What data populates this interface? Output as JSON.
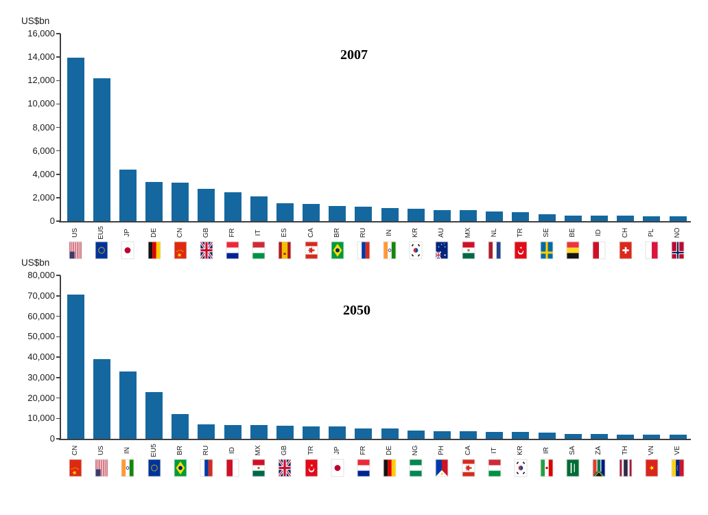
{
  "colors": {
    "bar": "#15689f",
    "axis": "#3f3f3f",
    "tick_text": "#1a1a1a",
    "title_text": "#000000"
  },
  "chart_data": [
    {
      "type": "bar",
      "title": "2007",
      "unit_label": "US$bn",
      "ylabel": "US$bn",
      "xlabel": "",
      "ylim": [
        0,
        16000
      ],
      "ytick_step": 2000,
      "ytick_labels": [
        "16,000",
        "14,000",
        "12,000",
        "10,000",
        "8,000",
        "6,000",
        "4,000",
        "2,000",
        "0"
      ],
      "grid": false,
      "legend": "none",
      "categories": [
        "US",
        "EU5",
        "JP",
        "DE",
        "CN",
        "GB",
        "FR",
        "IT",
        "ES",
        "CA",
        "BR",
        "RU",
        "IN",
        "KR",
        "AU",
        "MX",
        "NL",
        "TR",
        "SE",
        "BE",
        "ID",
        "CH",
        "PL",
        "NO"
      ],
      "values": [
        13950,
        12200,
        4400,
        3350,
        3300,
        2750,
        2450,
        2100,
        1500,
        1450,
        1300,
        1250,
        1100,
        1050,
        950,
        950,
        800,
        780,
        600,
        480,
        460,
        450,
        430,
        410
      ],
      "flag_icons": [
        "us",
        "eu",
        "jp",
        "de",
        "cn",
        "gb",
        "fr",
        "it",
        "es",
        "ca",
        "br",
        "ru",
        "in",
        "kr",
        "au",
        "mx",
        "nl",
        "tr",
        "se",
        "be",
        "id",
        "ch",
        "pl",
        "no"
      ]
    },
    {
      "type": "bar",
      "title": "2050",
      "unit_label": "US$bn",
      "ylabel": "US$bn",
      "xlabel": "",
      "ylim": [
        0,
        80000
      ],
      "ytick_step": 10000,
      "ytick_labels": [
        "80,000",
        "70,000",
        "60,000",
        "50,000",
        "40,000",
        "30,000",
        "20,000",
        "10,000",
        "0"
      ],
      "grid": false,
      "legend": "none",
      "categories": [
        "CN",
        "US",
        "IN",
        "EU5",
        "BR",
        "RU",
        "ID",
        "MX",
        "GB",
        "TR",
        "JP",
        "FR",
        "DE",
        "NG",
        "PH",
        "CA",
        "IT",
        "KR",
        "IR",
        "SA",
        "ZA",
        "TH",
        "VN",
        "VE"
      ],
      "values": [
        70500,
        39000,
        33000,
        23000,
        12000,
        7200,
        6800,
        6700,
        6300,
        6100,
        6000,
        5200,
        4900,
        4100,
        3800,
        3600,
        3500,
        3400,
        2900,
        2400,
        2300,
        2100,
        2000,
        1900
      ],
      "flag_icons": [
        "cn",
        "us",
        "in",
        "eu",
        "br",
        "ru",
        "id",
        "mx",
        "gb",
        "tr",
        "jp",
        "fr",
        "de",
        "ng",
        "ph",
        "ca",
        "it",
        "kr",
        "ir",
        "sa",
        "za",
        "th",
        "vn",
        "ve"
      ]
    }
  ]
}
